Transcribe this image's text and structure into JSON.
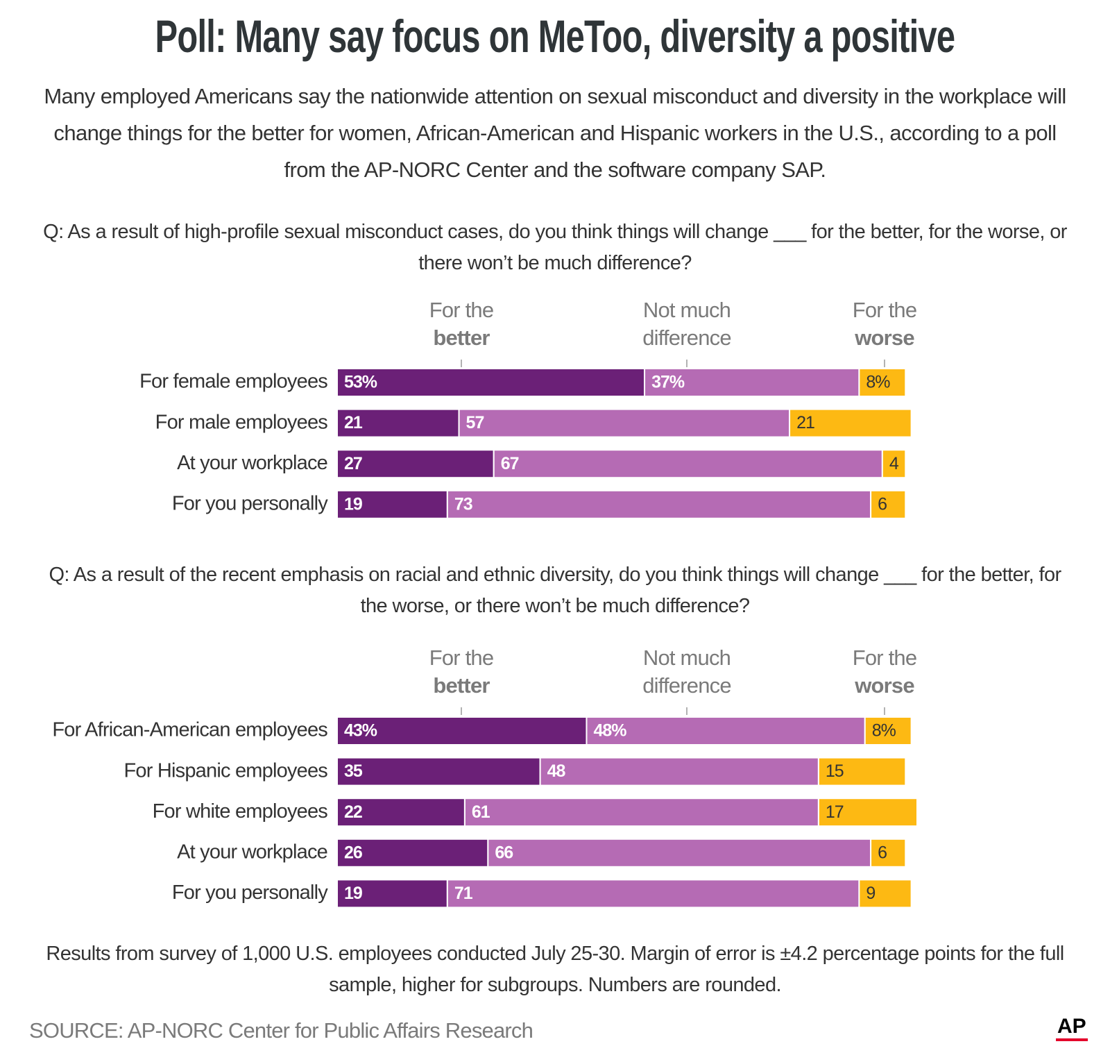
{
  "title": "Poll: Many say focus on MeToo, diversity a positive",
  "subtitle": "Many employed Americans say the nationwide attention on sexual misconduct and diversity in the workplace will change things for the better for women, African-American and Hispanic workers in the U.S., according to a poll from the AP-NORC Center and the software company SAP.",
  "chart_data": [
    {
      "type": "bar",
      "stacked": true,
      "question": "Q: As a result of high-profile sexual misconduct cases, do you think things will change ___ for the better, for the worse, or there won’t be much difference?",
      "categories": [
        "For female employees",
        "For male employees",
        "At your workplace",
        "For you personally"
      ],
      "xlim": [
        0,
        100
      ],
      "series": [
        {
          "name": "For the better",
          "color": "#6b2077",
          "values": [
            53,
            21,
            27,
            19
          ],
          "value_labels": [
            "53%",
            "21",
            "27",
            "19"
          ]
        },
        {
          "name": "Not much difference",
          "color": "#b56bb4",
          "values": [
            37,
            57,
            67,
            73
          ],
          "value_labels": [
            "37%",
            "57",
            "67",
            "73"
          ]
        },
        {
          "name": "For the worse",
          "color": "#fdb913",
          "values": [
            8,
            21,
            4,
            6
          ],
          "value_labels": [
            "8%",
            "21",
            "4",
            "6"
          ]
        }
      ]
    },
    {
      "type": "bar",
      "stacked": true,
      "question": "Q: As a result of the recent emphasis on racial and ethnic diversity, do you think things will change ___ for the better, for the worse, or there won’t be much difference?",
      "categories": [
        "For African-American employees",
        "For Hispanic employees",
        "For white employees",
        "At your workplace",
        "For you personally"
      ],
      "xlim": [
        0,
        100
      ],
      "series": [
        {
          "name": "For the better",
          "color": "#6b2077",
          "values": [
            43,
            35,
            22,
            26,
            19
          ],
          "value_labels": [
            "43%",
            "35",
            "22",
            "26",
            "19"
          ]
        },
        {
          "name": "Not much difference",
          "color": "#b56bb4",
          "values": [
            48,
            48,
            61,
            66,
            71
          ],
          "value_labels": [
            "48%",
            "48",
            "61",
            "66",
            "71"
          ]
        },
        {
          "name": "For the worse",
          "color": "#fdb913",
          "values": [
            8,
            15,
            17,
            6,
            9
          ],
          "value_labels": [
            "8%",
            "15",
            "17",
            "6",
            "9"
          ]
        }
      ]
    }
  ],
  "note": "Results from survey of 1,000 U.S. employees conducted July 25-30. Margin of error is ±4.2 percentage points for the full sample, higher for subgroups. Numbers are rounded.",
  "source": "SOURCE: AP-NORC Center for Public Affairs Research",
  "logo": "AP"
}
